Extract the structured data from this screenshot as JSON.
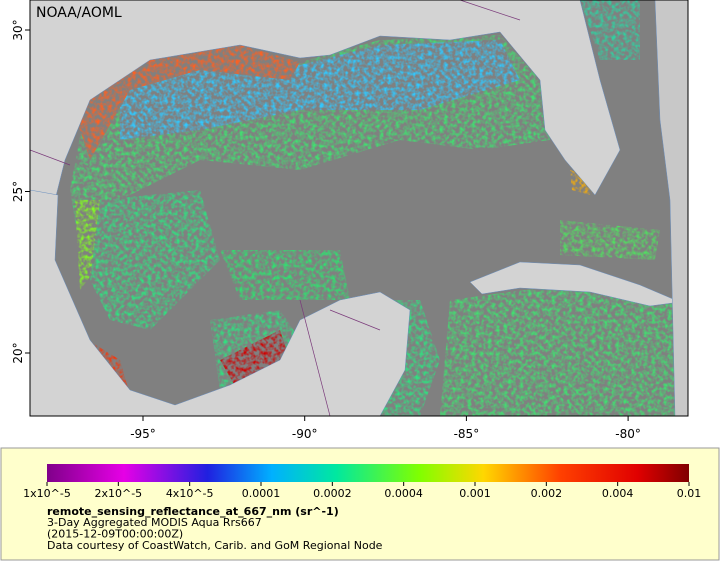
{
  "header": {
    "title": "NOAA/AOML"
  },
  "map": {
    "lon_labels": [
      "-95°",
      "-90°",
      "-85°",
      "-80°"
    ],
    "lat_labels": [
      "30°",
      "25°",
      "20°"
    ]
  },
  "legend": {
    "ticks": [
      "1x10^-5",
      "2x10^-5",
      "4x10^-5",
      "0.0001",
      "0.0002",
      "0.0004",
      "0.001",
      "0.002",
      "0.004",
      "0.01"
    ],
    "variable": "remote_sensing_reflectance_at_667_nm (sr^-1)",
    "lines": [
      "3-Day Aggregated MODIS Aqua Rrs667",
      "(2015-12-09T00:00:00Z)",
      "Data courtesy of CoastWatch, Carib. and GoM Regional Node"
    ]
  }
}
